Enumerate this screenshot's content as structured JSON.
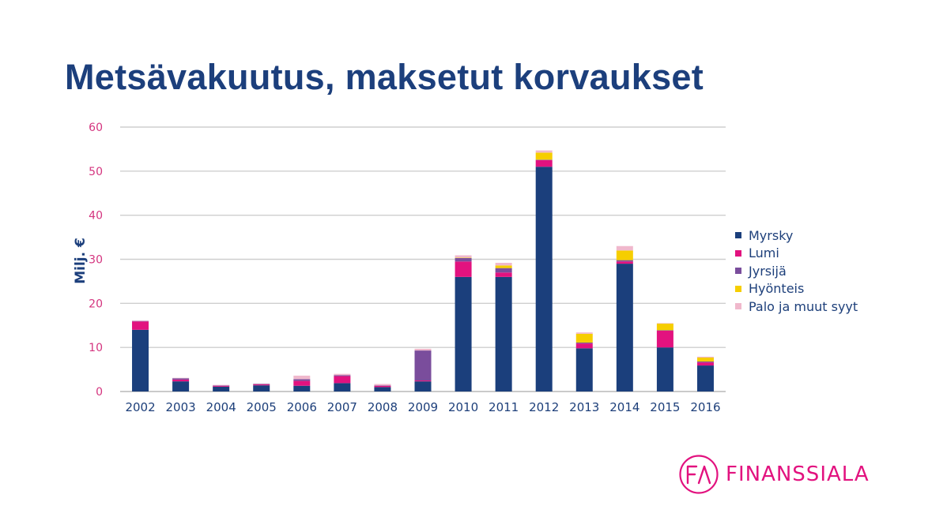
{
  "title": "Metsävakuutus, maksetut korvaukset",
  "chart_data": {
    "type": "bar",
    "stacked": true,
    "title": "Metsävakuutus, maksetut korvaukset",
    "xlabel": "",
    "ylabel": "Milj. €",
    "ylim": [
      0,
      60
    ],
    "yticks": [
      0,
      10,
      20,
      30,
      40,
      50,
      60
    ],
    "grid": true,
    "legend_position": "right",
    "categories": [
      "2002",
      "2003",
      "2004",
      "2005",
      "2006",
      "2007",
      "2008",
      "2009",
      "2010",
      "2011",
      "2012",
      "2013",
      "2014",
      "2015",
      "2016"
    ],
    "series": [
      {
        "name": "Myrsky",
        "color": "#1b3f7c",
        "values": [
          14,
          2.3,
          1.1,
          1.4,
          1.3,
          1.9,
          1.0,
          2.3,
          26,
          26,
          51,
          9.8,
          29,
          10,
          5.9
        ]
      },
      {
        "name": "Lumi",
        "color": "#e2127f",
        "values": [
          1.9,
          0.4,
          0.2,
          0.2,
          1.1,
          1.6,
          0.3,
          0.2,
          3.5,
          1.0,
          1.5,
          1.1,
          0.5,
          3.8,
          0.7
        ]
      },
      {
        "name": "Jyrsijä",
        "color": "#7a4d9c",
        "values": [
          0.1,
          0.3,
          0.1,
          0.1,
          0.4,
          0.2,
          0.1,
          6.8,
          0.8,
          1.0,
          0.1,
          0.2,
          0.3,
          0.1,
          0.2
        ]
      },
      {
        "name": "Hyönteis",
        "color": "#f6ce00",
        "values": [
          0,
          0,
          0,
          0,
          0,
          0,
          0,
          0,
          0.1,
          0.6,
          1.6,
          2.0,
          2.2,
          1.5,
          0.9
        ]
      },
      {
        "name": "Palo ja muut syyt",
        "color": "#f0b8cc",
        "values": [
          0.1,
          0.1,
          0.1,
          0.1,
          0.8,
          0.3,
          0.3,
          0.4,
          0.5,
          0.6,
          0.5,
          0.3,
          1.0,
          0.1,
          0.2
        ]
      }
    ]
  },
  "logo": {
    "monogram": "FA",
    "name": "FINANSSIALA",
    "color": "#e2127f"
  }
}
